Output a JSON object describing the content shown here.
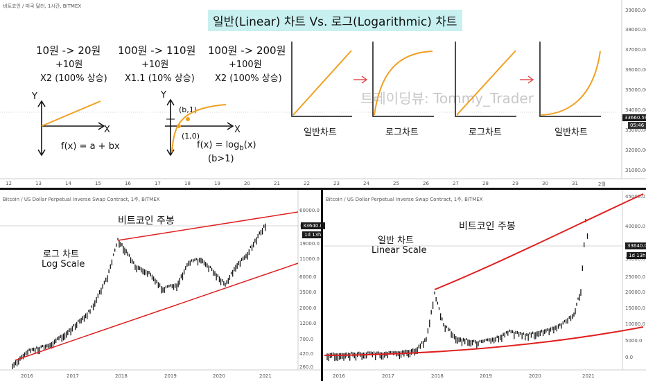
{
  "top": {
    "header": "비트코인 / 미국 달러, 1시간, BITMEX",
    "title": "일반(Linear) 차트 Vs. 로그(Logarithmic) 차트",
    "watermark": "트레이딩뷰: Tommy_Trader",
    "ex1": {
      "line1": "10원 -> 20원",
      "line2": "+10원",
      "line3": "X2 (100% 상승)"
    },
    "ex2": {
      "line1": "100원 -> 110원",
      "line2": "+10원",
      "line3": "X1.1 (10% 상승)"
    },
    "ex3": {
      "line1": "100원 -> 200원",
      "line2": "+100원",
      "line3": "X2 (100% 상승)"
    },
    "graph1": {
      "y": "Y",
      "x": "X",
      "formula": "f(x) = a + bx"
    },
    "graph2": {
      "y": "Y",
      "x": "X",
      "pt1": "(b,1)",
      "pt2": "(1,0)",
      "formula": "f(x) = log",
      "sub": "b",
      "formula_end": "(x)",
      "cond": "(b>1)"
    },
    "mini_labels": [
      "일반차트",
      "로그차트",
      "로그차트",
      "일반차트"
    ],
    "right_axis": [
      "39000.00",
      "38000.00",
      "37000.00",
      "36000.00",
      "35000.00",
      "34000.00",
      "33000.00",
      "32000.00",
      "31000.00"
    ],
    "price_tag": "33660.59",
    "time_tag": "05:46",
    "x_axis": [
      "12",
      "13",
      "14",
      "15",
      "16",
      "17",
      "18",
      "19",
      "20",
      "21",
      "22",
      "23",
      "24",
      "25",
      "26",
      "27",
      "28",
      "29",
      "30",
      "31",
      "2월"
    ]
  },
  "left": {
    "header": "Bitcoin / US Dollar Perpetual Inverse Swap Contract, 1주, BITMEX",
    "title": "비트코인 주봉",
    "label1": "로그 차트",
    "label2": "Log Scale",
    "right_axis": [
      "60000.0",
      "33640.0",
      "19000.0",
      "11000.0",
      "6000.0",
      "3500.0",
      "2000.0",
      "1200.0",
      "700.0",
      "420.0",
      "260.0"
    ],
    "price_tag": "33640.0",
    "time_tag": "1d 13h",
    "x_axis": [
      "2016",
      "2017",
      "2018",
      "2019",
      "2020",
      "2021"
    ]
  },
  "right": {
    "header": "Bitcoin / US Dollar Perpetual Inverse Swap Contract, 1주, BITMEX",
    "title": "비트코인 주봉",
    "label1": "일반 차트",
    "label2": "Linear Scale",
    "right_axis": [
      "45000.0",
      "40000.0",
      "33640.0",
      "30000.0",
      "25000.0",
      "20000.0",
      "15000.0",
      "10000.0",
      "5000.0",
      "0.0"
    ],
    "price_tag": "33640.0",
    "time_tag": "1d 13h",
    "x_axis": [
      "2016",
      "2017",
      "2018",
      "2019",
      "2020",
      "2021"
    ]
  },
  "colors": {
    "curve": "#f0a020",
    "trend": "#e02020",
    "arrow": "#e05050",
    "banner": "#c8f0f0"
  }
}
